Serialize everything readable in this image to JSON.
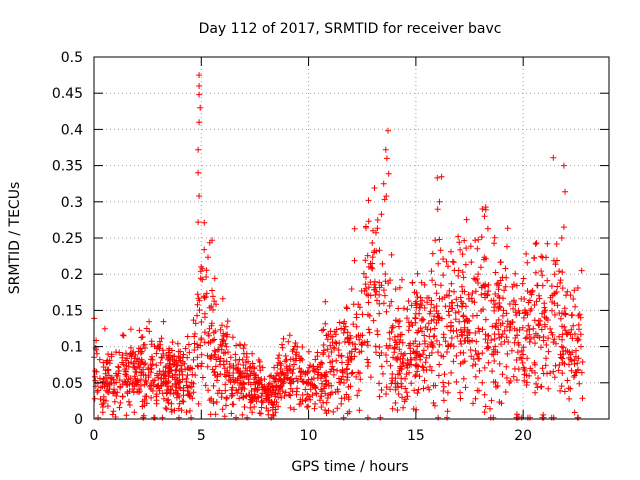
{
  "chart_data": {
    "type": "scatter",
    "title": "Day 112 of 2017, SRMTID for receiver bavc",
    "xlabel": "GPS time / hours",
    "ylabel": "SRMTID / TECUs",
    "xlim": [
      0,
      24
    ],
    "ylim": [
      0,
      0.5
    ],
    "x_ticks": [
      "0",
      "5",
      "10",
      "15",
      "20"
    ],
    "x_tick_values": [
      0,
      5,
      10,
      15,
      20
    ],
    "y_ticks": [
      "0",
      "0.05",
      "0.1",
      "0.15",
      "0.2",
      "0.25",
      "0.3",
      "0.35",
      "0.4",
      "0.45",
      "0.5"
    ],
    "y_tick_values": [
      0,
      0.05,
      0.1,
      0.15,
      0.2,
      0.25,
      0.3,
      0.35,
      0.4,
      0.45,
      0.5
    ],
    "grid": true,
    "marker": "+",
    "series_color": "#ff0000",
    "trend_profile": [
      [
        0.0,
        0.07
      ],
      [
        0.5,
        0.05
      ],
      [
        1.0,
        0.045
      ],
      [
        1.5,
        0.06
      ],
      [
        2.0,
        0.065
      ],
      [
        2.5,
        0.065
      ],
      [
        3.0,
        0.06
      ],
      [
        3.5,
        0.055
      ],
      [
        4.0,
        0.055
      ],
      [
        4.5,
        0.06
      ],
      [
        4.8,
        0.11
      ],
      [
        5.0,
        0.13
      ],
      [
        5.5,
        0.1
      ],
      [
        6.0,
        0.08
      ],
      [
        6.5,
        0.06
      ],
      [
        7.0,
        0.055
      ],
      [
        7.5,
        0.045
      ],
      [
        8.0,
        0.03
      ],
      [
        8.5,
        0.045
      ],
      [
        9.0,
        0.055
      ],
      [
        9.5,
        0.055
      ],
      [
        10.0,
        0.045
      ],
      [
        10.5,
        0.055
      ],
      [
        11.0,
        0.065
      ],
      [
        11.5,
        0.08
      ],
      [
        12.0,
        0.095
      ],
      [
        12.5,
        0.12
      ],
      [
        13.0,
        0.17
      ],
      [
        13.5,
        0.16
      ],
      [
        14.0,
        0.1
      ],
      [
        14.5,
        0.09
      ],
      [
        15.0,
        0.1
      ],
      [
        15.5,
        0.115
      ],
      [
        16.0,
        0.125
      ],
      [
        17.0,
        0.135
      ],
      [
        18.0,
        0.145
      ],
      [
        19.0,
        0.13
      ],
      [
        20.0,
        0.115
      ],
      [
        21.0,
        0.13
      ],
      [
        21.5,
        0.14
      ],
      [
        22.0,
        0.12
      ],
      [
        22.5,
        0.09
      ],
      [
        22.8,
        0.1
      ]
    ],
    "notable_points": [
      {
        "x": 4.9,
        "y": 0.475
      },
      {
        "x": 4.9,
        "y": 0.46
      },
      {
        "x": 4.9,
        "y": 0.448
      },
      {
        "x": 4.95,
        "y": 0.43
      },
      {
        "x": 4.9,
        "y": 0.41
      },
      {
        "x": 4.85,
        "y": 0.372
      },
      {
        "x": 4.85,
        "y": 0.34
      },
      {
        "x": 4.9,
        "y": 0.308
      },
      {
        "x": 4.85,
        "y": 0.272
      },
      {
        "x": 13.7,
        "y": 0.398
      },
      {
        "x": 13.6,
        "y": 0.372
      },
      {
        "x": 13.65,
        "y": 0.36
      },
      {
        "x": 13.5,
        "y": 0.325
      },
      {
        "x": 16.0,
        "y": 0.333
      },
      {
        "x": 16.1,
        "y": 0.3
      },
      {
        "x": 18.1,
        "y": 0.29
      },
      {
        "x": 18.2,
        "y": 0.28
      },
      {
        "x": 21.9,
        "y": 0.35
      },
      {
        "x": 21.95,
        "y": 0.314
      },
      {
        "x": 21.9,
        "y": 0.265
      },
      {
        "x": 21.8,
        "y": 0.25
      },
      {
        "x": 5.5,
        "y": 0.247
      },
      {
        "x": 13.0,
        "y": 0.26
      },
      {
        "x": 12.8,
        "y": 0.273
      },
      {
        "x": 15.9,
        "y": 0.247
      }
    ],
    "point_count": 2000,
    "seed": 112
  }
}
